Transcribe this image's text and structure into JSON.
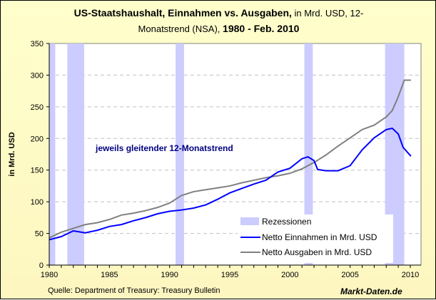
{
  "title": {
    "bold1": "US-Staatshaushalt, Einnahmen vs. Ausgaben,",
    "normal1": " in Mrd. USD, 12-",
    "normal2": "Monatstrend (NSA), ",
    "bold2": "1980 - Feb. 2010"
  },
  "footer": {
    "source": "Quelle: Department of Treasury: Treasury Bulletin",
    "brand": "Markt-Daten.de"
  },
  "chart_data": {
    "type": "line",
    "ylabel": "in Mrd. USD",
    "xlabel": "",
    "ylim": [
      0,
      350
    ],
    "xlim": [
      1980,
      2010.9
    ],
    "yticks": [
      0,
      50,
      100,
      150,
      200,
      250,
      300,
      350
    ],
    "xticks": [
      1980,
      1985,
      1990,
      1995,
      2000,
      2005,
      2010
    ],
    "grid": "horizontal dashed",
    "legend_position": "bottom-right",
    "annotation": "jeweils gleitender 12-Monatstrend",
    "recessions": {
      "name": "Rezessionen",
      "color": "#ccccff",
      "periods": [
        [
          1980.0,
          1980.5
        ],
        [
          1981.5,
          1982.9
        ],
        [
          1990.5,
          1991.2
        ],
        [
          2001.2,
          2001.9
        ],
        [
          2007.9,
          2009.5
        ]
      ]
    },
    "series": [
      {
        "name": "Netto Einnahmen in Mrd. USD",
        "color": "#0000ff",
        "x": [
          1980,
          1981,
          1982,
          1983,
          1984,
          1985,
          1986,
          1987,
          1988,
          1989,
          1990,
          1991,
          1992,
          1993,
          1994,
          1995,
          1996,
          1997,
          1998,
          1999,
          2000,
          2001,
          2001.5,
          2002,
          2002.3,
          2003,
          2004,
          2005,
          2006,
          2007,
          2008,
          2008.5,
          2009,
          2009.4,
          2010.05
        ],
        "y": [
          40,
          45,
          54,
          51,
          55,
          61,
          64,
          70,
          75,
          81,
          85,
          87,
          90,
          95,
          104,
          114,
          121,
          128,
          134,
          147,
          153,
          168,
          171,
          165,
          151,
          149,
          149,
          157,
          182,
          201,
          214,
          216,
          207,
          186,
          172
        ]
      },
      {
        "name": "Netto Ausgaben in Mrd. USD",
        "color": "#808080",
        "x": [
          1980,
          1981,
          1982,
          1983,
          1984,
          1985,
          1986,
          1987,
          1988,
          1989,
          1990,
          1991,
          1992,
          1993,
          1994,
          1995,
          1996,
          1997,
          1998,
          1999,
          2000,
          2001,
          2002,
          2003,
          2004,
          2005,
          2006,
          2007,
          2008,
          2008.5,
          2009,
          2009.5,
          2010.05
        ],
        "y": [
          43,
          52,
          58,
          64,
          67,
          72,
          79,
          82,
          86,
          91,
          98,
          110,
          116,
          119,
          122,
          125,
          130,
          134,
          138,
          141,
          145,
          152,
          162,
          174,
          188,
          201,
          214,
          221,
          234,
          244,
          266,
          292,
          292
        ]
      }
    ]
  }
}
